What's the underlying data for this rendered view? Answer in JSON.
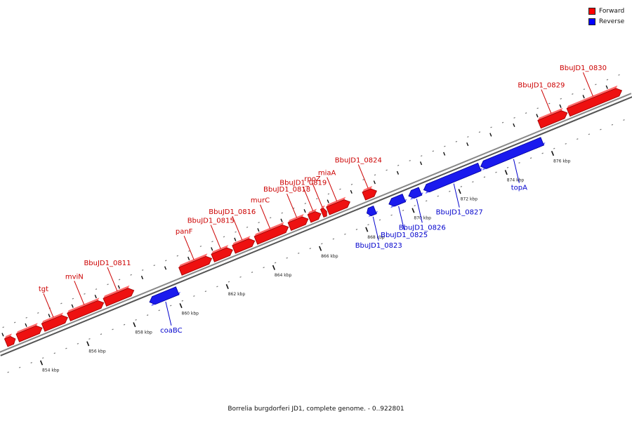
{
  "caption": "Borrelia burgdorferi JD1, complete genome. - 0..922801",
  "legend": [
    {
      "label": "Forward",
      "color": "#ff0000"
    },
    {
      "label": "Reverse",
      "color": "#0000ff"
    }
  ],
  "colors": {
    "forward": "#ee1111",
    "reverse": "#1a1aee",
    "backbone": "#888888"
  },
  "ticks": [
    {
      "kbp": 854,
      "label": "854 kbp"
    },
    {
      "kbp": 856,
      "label": "856 kbp"
    },
    {
      "kbp": 858,
      "label": "858 kbp"
    },
    {
      "kbp": 860,
      "label": "860 kbp"
    },
    {
      "kbp": 862,
      "label": "862 kbp"
    },
    {
      "kbp": 864,
      "label": "864 kbp"
    },
    {
      "kbp": 866,
      "label": "866 kbp"
    },
    {
      "kbp": 868,
      "label": "868 kbp"
    },
    {
      "kbp": 870,
      "label": "870 kbp"
    },
    {
      "kbp": 872,
      "label": "872 kbp"
    },
    {
      "kbp": 874,
      "label": "874 kbp"
    },
    {
      "kbp": 876,
      "label": "876 kbp"
    }
  ],
  "genes": [
    {
      "name": "",
      "strand": "forward",
      "start": 853.0,
      "end": 853.4
    },
    {
      "name": "",
      "strand": "forward",
      "start": 853.5,
      "end": 854.55
    },
    {
      "name": "tgt",
      "strand": "forward",
      "start": 854.6,
      "end": 855.65
    },
    {
      "name": "mviN",
      "strand": "forward",
      "start": 855.7,
      "end": 857.2
    },
    {
      "name": "BbuJD1_0811",
      "strand": "forward",
      "start": 857.25,
      "end": 858.5
    },
    {
      "name": "coaBC",
      "strand": "reverse",
      "start": 858.9,
      "end": 860.1
    },
    {
      "name": "panF",
      "strand": "forward",
      "start": 860.5,
      "end": 861.85
    },
    {
      "name": "BbuJD1_0815",
      "strand": "forward",
      "start": 861.9,
      "end": 862.75
    },
    {
      "name": "BbuJD1_0816",
      "strand": "forward",
      "start": 862.8,
      "end": 863.7
    },
    {
      "name": "murC",
      "strand": "forward",
      "start": 863.75,
      "end": 865.15
    },
    {
      "name": "BbuJD1_0818",
      "strand": "forward",
      "start": 865.2,
      "end": 866.0
    },
    {
      "name": "BbuJD1_0819",
      "strand": "forward",
      "start": 866.05,
      "end": 866.55
    },
    {
      "name": "rpoZ",
      "strand": "forward",
      "start": 866.6,
      "end": 866.8
    },
    {
      "name": "miaA",
      "strand": "forward",
      "start": 866.85,
      "end": 867.8
    },
    {
      "name": "BbuJD1_0823",
      "strand": "reverse",
      "start": 868.25,
      "end": 868.6
    },
    {
      "name": "BbuJD1_0824",
      "strand": "forward",
      "start": 868.4,
      "end": 868.95
    },
    {
      "name": "BbuJD1_0825",
      "strand": "reverse",
      "start": 869.2,
      "end": 869.85
    },
    {
      "name": "BbuJD1_0826",
      "strand": "reverse",
      "start": 870.05,
      "end": 870.55
    },
    {
      "name": "BbuJD1_0827",
      "strand": "reverse",
      "start": 870.7,
      "end": 873.1
    },
    {
      "name": "topA",
      "strand": "reverse",
      "start": 873.15,
      "end": 875.8
    },
    {
      "name": "BbuJD1_0829",
      "strand": "forward",
      "start": 875.95,
      "end": 877.15
    },
    {
      "name": "BbuJD1_0830",
      "strand": "forward",
      "start": 877.2,
      "end": 879.5
    }
  ]
}
